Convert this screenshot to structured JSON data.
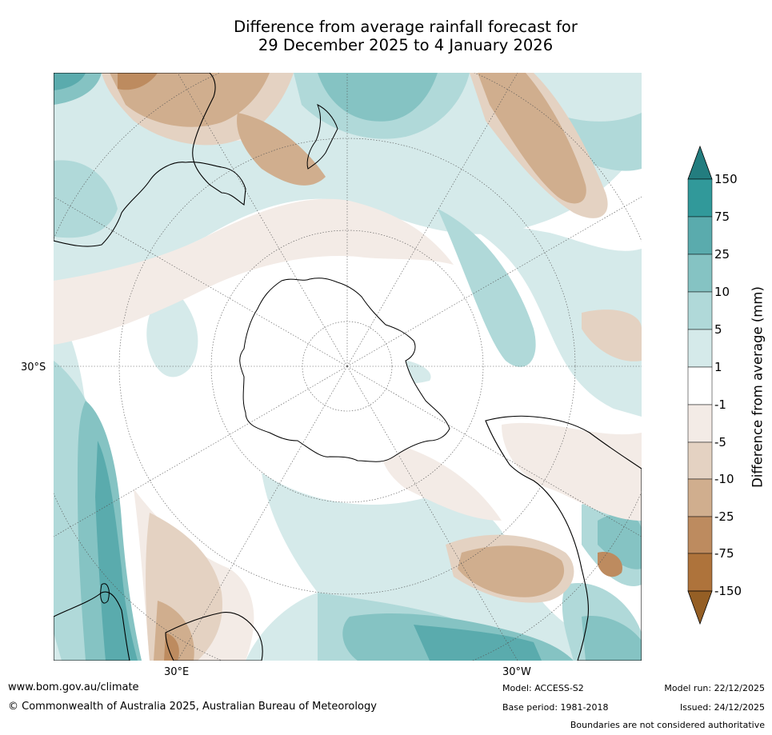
{
  "title": {
    "line1": "Difference from average rainfall forecast for",
    "line2": "29 December 2025 to 4 January 2026"
  },
  "map": {
    "projection": "south-polar-stereographic",
    "latitude_label": "30°S",
    "longitude_labels": {
      "east": "30°E",
      "west": "30°W"
    },
    "features": [
      "Antarctica",
      "Australia",
      "New Zealand",
      "South America",
      "Africa",
      "Madagascar"
    ]
  },
  "legend": {
    "title": "Difference from average (mm)",
    "tick_labels": [
      "150",
      "75",
      "25",
      "10",
      "5",
      "1",
      "-1",
      "-5",
      "-10",
      "-25",
      "-75",
      "-150"
    ],
    "colors": {
      "c150": "#237d7f",
      "c75_150": "#31999a",
      "c25_75": "#5aabad",
      "c10_25": "#85c3c3",
      "c5_10": "#b0d9d9",
      "c1_5": "#d5eaea",
      "c0": "#ffffff",
      "m1_5": "#f3ebe6",
      "m5_10": "#e4d2c2",
      "m10_25": "#d0ae8e",
      "m25_75": "#bd8b5f",
      "m75_150": "#ae733b",
      "m150": "#955f25"
    }
  },
  "footer": {
    "website": "www.bom.gov.au/climate",
    "copyright": "© Commonwealth of Australia 2025, Australian Bureau of Meteorology",
    "model": "Model: ACCESS-S2",
    "base_period": "Base period: 1981-2018",
    "model_run": "Model run: 22/12/2025",
    "issued": "Issued: 24/12/2025",
    "disclaimer": "Boundaries are not considered authoritative"
  }
}
